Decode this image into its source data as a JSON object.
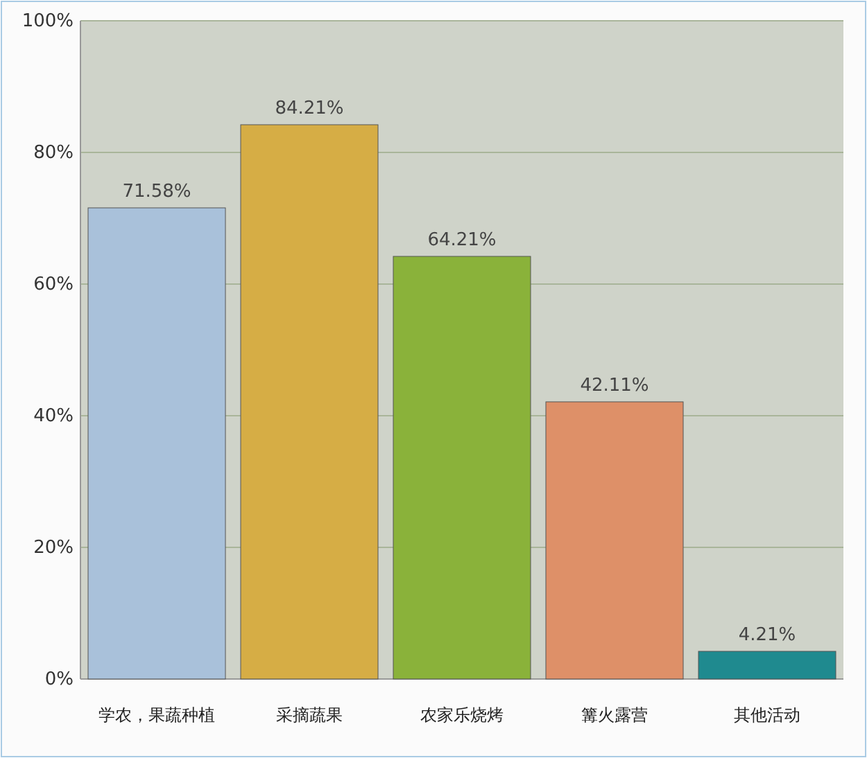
{
  "chart_data": {
    "type": "bar",
    "categories": [
      "学农，果蔬种植",
      "采摘蔬果",
      "农家乐烧烤",
      "篝火露营",
      "其他活动"
    ],
    "values": [
      71.58,
      84.21,
      64.21,
      42.11,
      4.21
    ],
    "colors": [
      "#a9c1da",
      "#d6ad45",
      "#8ab23a",
      "#de9068",
      "#1f8a8f"
    ],
    "value_labels": [
      "71.58%",
      "84.21%",
      "64.21%",
      "42.11%",
      "4.21%"
    ],
    "ylim": [
      0,
      100
    ],
    "yticks": [
      {
        "value": 0,
        "label": "0%"
      },
      {
        "value": 20,
        "label": "20%"
      },
      {
        "value": 40,
        "label": "40%"
      },
      {
        "value": 60,
        "label": "60%"
      },
      {
        "value": 80,
        "label": "80%"
      },
      {
        "value": 100,
        "label": "100%"
      }
    ],
    "grid": "y"
  }
}
